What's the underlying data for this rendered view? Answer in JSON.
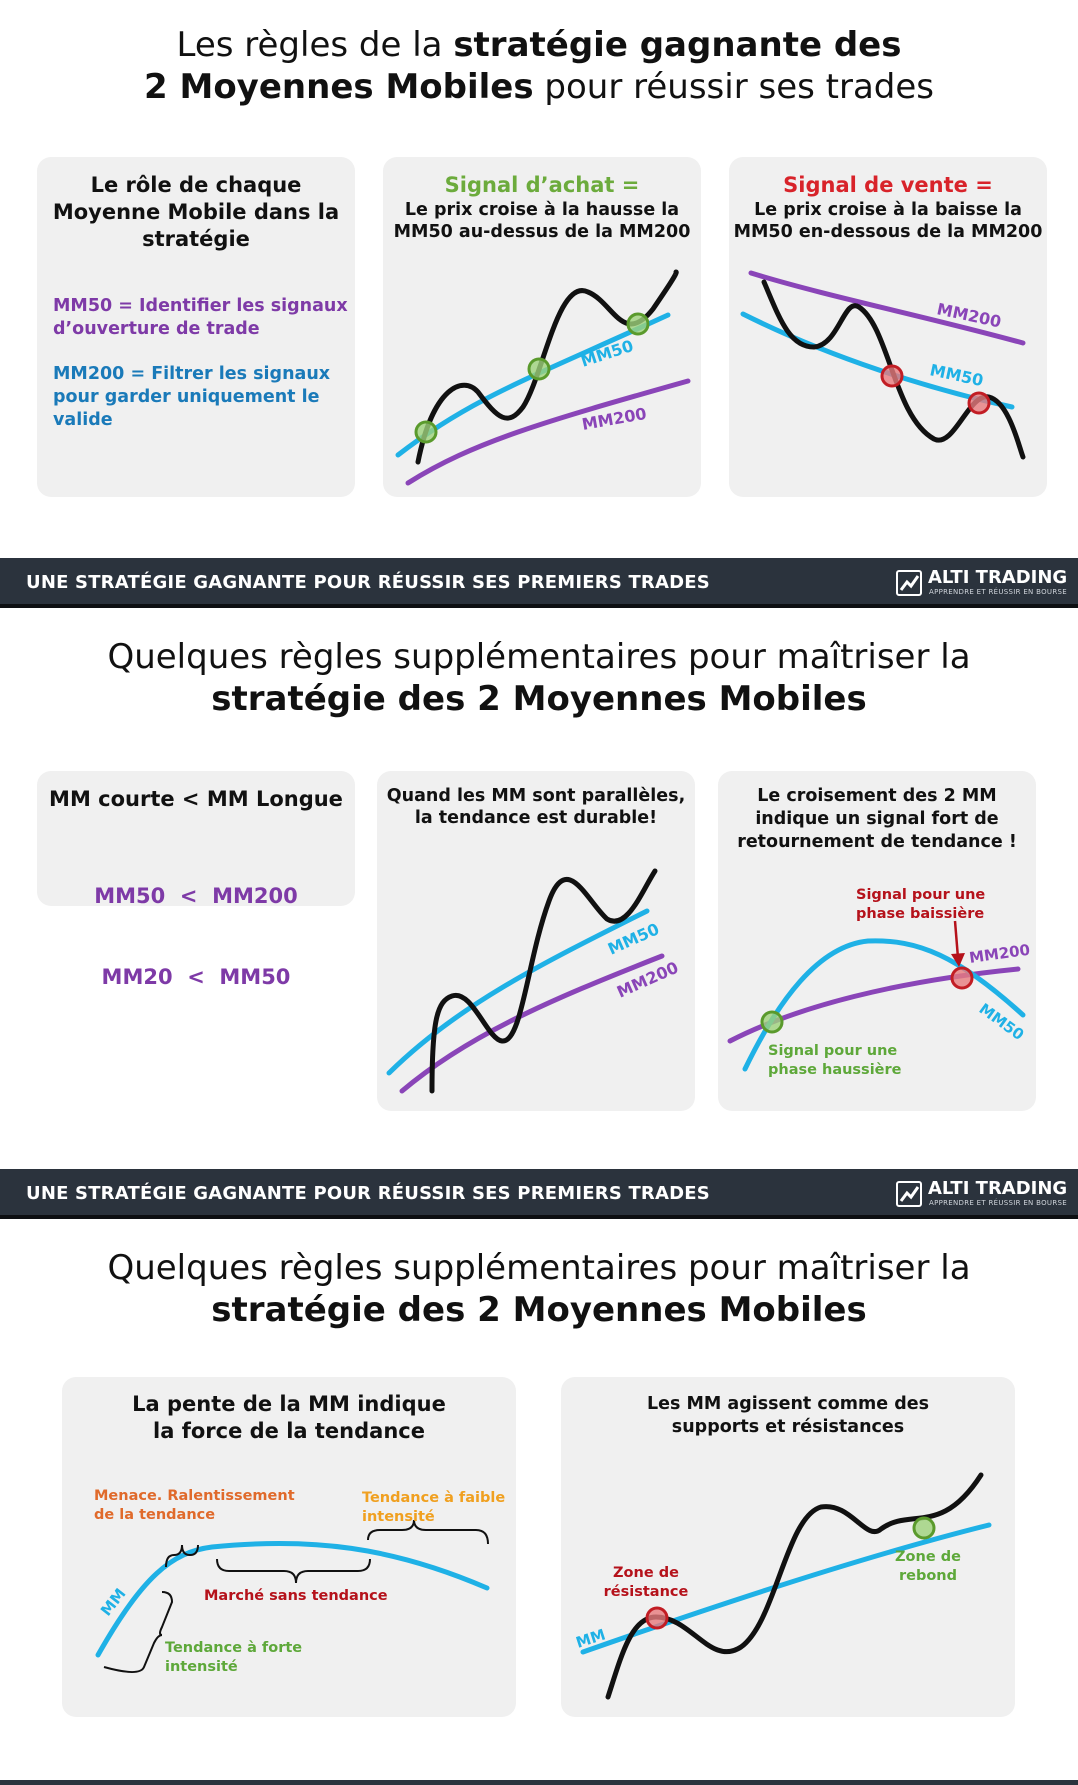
{
  "section1": {
    "title_normal_1": "Les règles de la ",
    "title_bold_1": "stratégie gagnante des",
    "title_bold_2": "2 Moyennes Mobiles",
    "title_normal_2": " pour réussir ses trades",
    "card1": {
      "heading_line1": "Le rôle de chaque",
      "heading_line2": "Moyenne Mobile dans la",
      "heading_line3": "stratégie",
      "mm50_line1": "MM50 = Identifier les signaux",
      "mm50_line2": "d’ouverture de trade",
      "mm200_line1": "MM200 = Filtrer les signaux",
      "mm200_line2": "pour garder uniquement le",
      "mm200_line3": "valide"
    },
    "card2": {
      "signal": "Signal d’achat =",
      "line1": "Le prix croise à la hausse la",
      "line2": "MM50 au-dessus de la MM200",
      "label_mm50": "MM50",
      "label_mm200": "MM200"
    },
    "card3": {
      "signal": "Signal de vente =",
      "line1": "Le prix croise à la baisse la",
      "line2": "MM50 en-dessous de la MM200",
      "label_mm50": "MM50",
      "label_mm200": "MM200"
    }
  },
  "banner": {
    "text": "UNE STRATÉGIE GAGNANTE POUR RÉUSSIR SES PREMIERS TRADES",
    "logo_name": "ALTI TRADING",
    "logo_tag": "APPRENDRE ET RÉUSSIR EN BOURSE"
  },
  "section2": {
    "title_line1": "Quelques règles supplémentaires pour maîtriser la",
    "title_line2": "stratégie des 2 Moyennes Mobiles",
    "card1": {
      "heading": "MM courte < MM Longue",
      "row1": "MM50  <  MM200",
      "row2": "MM20  <  MM50"
    },
    "card2": {
      "line1": "Quand les MM sont parallèles,",
      "line2": "la tendance est durable!",
      "label_mm50": "MM50",
      "label_mm200": "MM200"
    },
    "card3": {
      "line1": "Le croisement des 2 MM",
      "line2": "indique un signal fort de",
      "line3": "retournement de tendance !",
      "sell_line1": "Signal pour une",
      "sell_line2": "phase baissière",
      "buy_line1": "Signal pour une",
      "buy_line2": "phase haussière",
      "label_mm200": "MM200",
      "label_mm50": "MM50"
    }
  },
  "section3": {
    "title_line1": "Quelques règles supplémentaires pour maîtriser la",
    "title_line2": "stratégie des 2 Moyennes Mobiles",
    "card1": {
      "line1": "La pente de la MM indique",
      "line2": "la force de la tendance",
      "menace_line1": "Menace. Ralentissement",
      "menace_line2": "de la tendance",
      "faible_line1": "Tendance à faible",
      "faible_line2": "intensité",
      "sans": "Marché sans tendance",
      "forte_line1": "Tendance à forte",
      "forte_line2": "intensité",
      "label_mm": "MM"
    },
    "card2": {
      "line1": "Les MM agissent comme des",
      "line2": "supports et résistances",
      "resist_line1": "Zone de",
      "resist_line2": "résistance",
      "rebond_line1": "Zone de",
      "rebond_line2": "rebond",
      "label_mm": "MM"
    }
  },
  "colors": {
    "price": "#111111",
    "mm_short": "#1fb1e6",
    "mm_long": "#8a45b8",
    "buy": "#72ad3f",
    "sell": "#d8232a",
    "orange_menace": "#e06a2b",
    "orange_faible": "#f0a020",
    "red_text": "#b5121b",
    "green_text": "#5ea83a",
    "banner_bg": "#2b333d",
    "card_bg": "#f0f0f0"
  }
}
